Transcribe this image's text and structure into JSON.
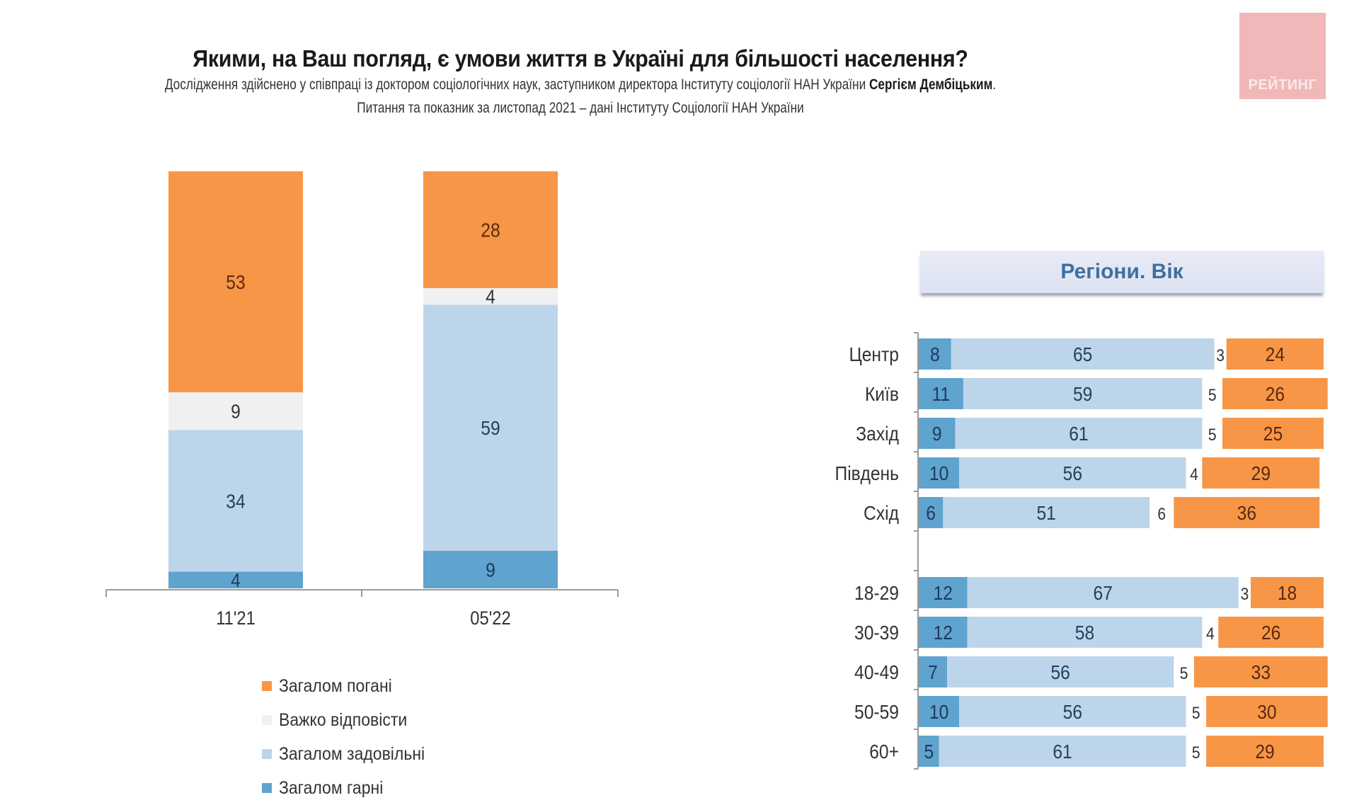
{
  "header": {
    "title": "Якими, на Ваш погляд, є умови життя в Україні для більшості населення?",
    "subtitle_line1_prefix": "Дослідження здійснено у співпраці із доктором соціологічних наук, заступником директора Інституту соціології НАН України ",
    "subtitle_line1_bold": "Сергієм Дембіцьким",
    "subtitle_line1_suffix": ".",
    "subtitle_line2": "Питання та показник за листопад 2021 – дані Інституту Соціології НАН України"
  },
  "logo": {
    "text": "РЕЙТИНГ",
    "color": "#f0b8b8"
  },
  "colors": {
    "bad": "#f79646",
    "hard": "#f0f0f0",
    "satisfactory": "#bdd5ea",
    "good": "#5fa3cf"
  },
  "legend": [
    {
      "key": "bad",
      "label": "Загалом погані"
    },
    {
      "key": "hard",
      "label": "Важко відповісти"
    },
    {
      "key": "satisfactory",
      "label": "Загалом задовільні"
    },
    {
      "key": "good",
      "label": "Загалом гарні"
    }
  ],
  "right_header": {
    "label": "Регіони. Вік"
  },
  "chart_data": [
    {
      "type": "bar",
      "subtype": "stacked-vertical",
      "title": "Якими, на Ваш погляд, є умови життя в Україні для більшості населення?",
      "xlabel": "",
      "ylabel": "",
      "ylim": [
        0,
        100
      ],
      "grid": false,
      "legend_position": "bottom",
      "categories": [
        "11'21",
        "05'22"
      ],
      "series": [
        {
          "name": "Загалом гарні",
          "key": "good",
          "values": [
            4,
            9
          ]
        },
        {
          "name": "Загалом задовільні",
          "key": "satisfactory",
          "values": [
            34,
            59
          ]
        },
        {
          "name": "Важко відповісти",
          "key": "hard",
          "values": [
            9,
            4
          ]
        },
        {
          "name": "Загалом погані",
          "key": "bad",
          "values": [
            53,
            28
          ]
        }
      ]
    },
    {
      "type": "bar",
      "subtype": "stacked-horizontal-100",
      "title": "Регіони. Вік",
      "xlim": [
        0,
        100
      ],
      "grid": false,
      "groups": [
        {
          "name": "regions",
          "categories": [
            "Центр",
            "Київ",
            "Захід",
            "Південь",
            "Схід"
          ]
        },
        {
          "name": "age",
          "categories": [
            "18-29",
            "30-39",
            "40-49",
            "50-59",
            "60+"
          ]
        }
      ],
      "categories": [
        "Центр",
        "Київ",
        "Захід",
        "Південь",
        "Схід",
        "18-29",
        "30-39",
        "40-49",
        "50-59",
        "60+"
      ],
      "series": [
        {
          "name": "Загалом гарні",
          "key": "good",
          "values": [
            8,
            11,
            9,
            10,
            6,
            12,
            12,
            7,
            10,
            5
          ]
        },
        {
          "name": "Загалом задовільні",
          "key": "satisfactory",
          "values": [
            65,
            59,
            61,
            56,
            51,
            67,
            58,
            56,
            56,
            61
          ]
        },
        {
          "name": "Важко відповісти",
          "key": "hard",
          "values": [
            3,
            5,
            5,
            4,
            6,
            3,
            4,
            5,
            5,
            5
          ]
        },
        {
          "name": "Загалом погані",
          "key": "bad",
          "values": [
            24,
            26,
            25,
            29,
            36,
            18,
            26,
            33,
            30,
            29
          ]
        }
      ]
    }
  ]
}
